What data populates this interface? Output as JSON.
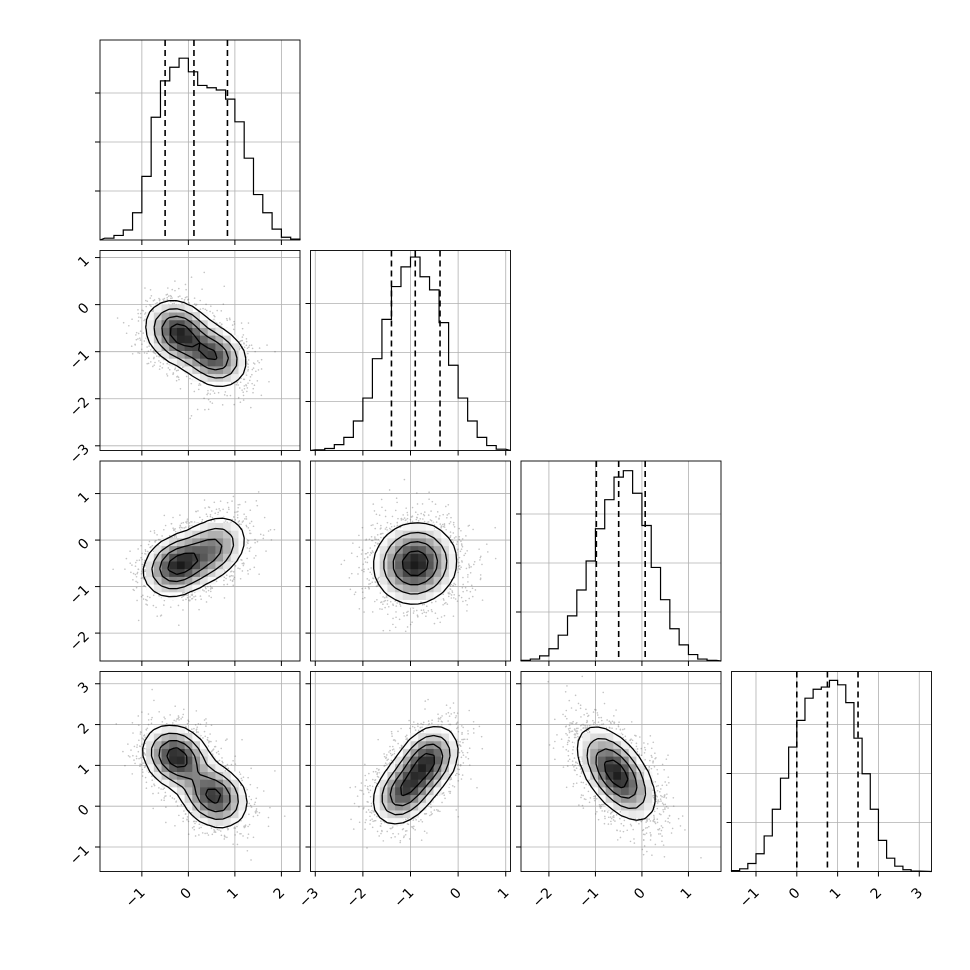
{
  "colors": {
    "background": "#ffffff",
    "ink": "#000000",
    "grid": "#b0b0b0",
    "scatter": "#555555"
  },
  "chart_data": {
    "type": "corner",
    "title": "",
    "parameters": [
      {
        "name": "",
        "xlim": [
          -1.9,
          2.4
        ],
        "hist_ylim": [
          0,
          0.44
        ],
        "ticks": [
          -1,
          0,
          1,
          2
        ],
        "tick_labels": [
          "−1",
          "0",
          "1",
          "2"
        ],
        "quantiles": [
          -0.5,
          0.12,
          0.84
        ]
      },
      {
        "name": "",
        "xlim": [
          -3.1,
          1.1
        ],
        "hist_ylim": [
          0,
          0.61
        ],
        "ticks": [
          -3,
          -2,
          -1,
          0,
          1
        ],
        "tick_labels": [
          "−3",
          "−2",
          "−1",
          "0",
          "1"
        ],
        "quantiles": [
          -1.4,
          -0.9,
          -0.38
        ]
      },
      {
        "name": "",
        "xlim": [
          -2.6,
          1.7
        ],
        "hist_ylim": [
          0,
          0.62
        ],
        "ticks": [
          -2,
          -1,
          0,
          1
        ],
        "tick_labels": [
          "−2",
          "−1",
          "0",
          "1"
        ],
        "quantiles": [
          -0.98,
          -0.5,
          0.07
        ]
      },
      {
        "name": "",
        "xlim": [
          -1.6,
          3.3
        ],
        "hist_ylim": [
          0,
          0.45
        ],
        "ticks": [
          -1,
          0,
          1,
          2,
          3
        ],
        "tick_labels": [
          "−1",
          "0",
          "1",
          "2",
          "3"
        ],
        "quantiles": [
          0.0,
          0.75,
          1.5
        ]
      }
    ],
    "histograms": [
      {
        "bin_edges": [
          -1.8,
          -1.6,
          -1.4,
          -1.2,
          -1.0,
          -0.8,
          -0.6,
          -0.4,
          -0.2,
          0.0,
          0.2,
          0.4,
          0.6,
          0.8,
          1.0,
          1.2,
          1.4,
          1.6,
          1.8,
          2.0,
          2.2,
          2.4
        ],
        "counts": [
          0.004,
          0.01,
          0.022,
          0.06,
          0.14,
          0.27,
          0.35,
          0.38,
          0.4,
          0.37,
          0.34,
          0.335,
          0.33,
          0.31,
          0.26,
          0.18,
          0.1,
          0.06,
          0.024,
          0.006,
          0.002
        ]
      },
      {
        "bin_edges": [
          -3.0,
          -2.8,
          -2.6,
          -2.4,
          -2.2,
          -2.0,
          -1.8,
          -1.6,
          -1.4,
          -1.2,
          -1.0,
          -0.8,
          -0.6,
          -0.4,
          -0.2,
          0.0,
          0.2,
          0.4,
          0.6,
          0.8,
          1.0
        ],
        "counts": [
          0.002,
          0.006,
          0.018,
          0.04,
          0.09,
          0.16,
          0.28,
          0.4,
          0.5,
          0.56,
          0.59,
          0.53,
          0.49,
          0.39,
          0.26,
          0.16,
          0.09,
          0.04,
          0.015,
          0.004
        ]
      },
      {
        "bin_edges": [
          -2.6,
          -2.4,
          -2.2,
          -2.0,
          -1.8,
          -1.6,
          -1.4,
          -1.2,
          -1.0,
          -0.8,
          -0.6,
          -0.4,
          -0.2,
          0.0,
          0.2,
          0.4,
          0.6,
          0.8,
          1.0,
          1.2,
          1.4,
          1.6
        ],
        "counts": [
          0.002,
          0.006,
          0.016,
          0.038,
          0.08,
          0.14,
          0.22,
          0.31,
          0.41,
          0.5,
          0.57,
          0.59,
          0.52,
          0.42,
          0.29,
          0.19,
          0.1,
          0.05,
          0.02,
          0.006,
          0.002
        ]
      },
      {
        "bin_edges": [
          -1.6,
          -1.4,
          -1.2,
          -1.0,
          -0.8,
          -0.6,
          -0.4,
          -0.2,
          0.0,
          0.2,
          0.4,
          0.6,
          0.8,
          1.0,
          1.2,
          1.4,
          1.6,
          1.8,
          2.0,
          2.2,
          2.4,
          2.6,
          2.8,
          3.0
        ],
        "counts": [
          0.002,
          0.006,
          0.018,
          0.04,
          0.08,
          0.14,
          0.21,
          0.28,
          0.34,
          0.39,
          0.41,
          0.415,
          0.43,
          0.42,
          0.38,
          0.3,
          0.22,
          0.14,
          0.07,
          0.03,
          0.012,
          0.004,
          0.001
        ]
      }
    ],
    "pairs": [
      {
        "row": 1,
        "col": 0,
        "ylim": [
          -3.1,
          1.15
        ],
        "yticks": [
          -3,
          -2,
          -1,
          0,
          1
        ],
        "ytick_labels": [
          "−3",
          "−2",
          "−1",
          "0",
          "1"
        ],
        "modes": [
          {
            "mx": -0.2,
            "my": -0.6,
            "sx": 0.35,
            "sy": 0.33,
            "rho": -0.2,
            "w": 0.55
          },
          {
            "mx": 0.55,
            "my": -1.1,
            "sx": 0.35,
            "sy": 0.32,
            "rho": -0.2,
            "w": 0.45
          }
        ]
      },
      {
        "row": 2,
        "col": 0,
        "ylim": [
          -2.6,
          1.7
        ],
        "yticks": [
          -2,
          -1,
          0,
          1
        ],
        "ytick_labels": [
          "−2",
          "−1",
          "0",
          "1"
        ],
        "modes": [
          {
            "mx": -0.25,
            "my": -0.55,
            "sx": 0.35,
            "sy": 0.32,
            "rho": 0.2,
            "w": 0.55
          },
          {
            "mx": 0.5,
            "my": -0.2,
            "sx": 0.38,
            "sy": 0.36,
            "rho": 0.3,
            "w": 0.45
          }
        ]
      },
      {
        "row": 3,
        "col": 0,
        "ylim": [
          -1.6,
          3.3
        ],
        "yticks": [
          -1,
          0,
          1,
          2,
          3
        ],
        "ytick_labels": [
          "−1",
          "0",
          "1",
          "2",
          "3"
        ],
        "modes": [
          {
            "mx": -0.25,
            "my": 1.2,
            "sx": 0.35,
            "sy": 0.38,
            "rho": -0.2,
            "w": 0.52
          },
          {
            "mx": 0.55,
            "my": 0.25,
            "sx": 0.35,
            "sy": 0.38,
            "rho": -0.2,
            "w": 0.48
          }
        ]
      },
      {
        "row": 2,
        "col": 1,
        "ylim": [
          -2.6,
          1.7
        ],
        "yticks": [
          -2,
          -1,
          0,
          1
        ],
        "ytick_labels": [
          "−2",
          "−1",
          "0",
          "1"
        ],
        "modes": [
          {
            "mx": -0.9,
            "my": -0.5,
            "sx": 0.42,
            "sy": 0.42,
            "rho": 0.05,
            "w": 1.0
          }
        ]
      },
      {
        "row": 3,
        "col": 1,
        "ylim": [
          -1.6,
          3.3
        ],
        "yticks": [
          -1,
          0,
          1,
          2,
          3
        ],
        "ytick_labels": [
          "−1",
          "0",
          "1",
          "2",
          "3"
        ],
        "modes": [
          {
            "mx": -1.15,
            "my": 0.35,
            "sx": 0.32,
            "sy": 0.4,
            "rho": 0.3,
            "w": 0.45
          },
          {
            "mx": -0.65,
            "my": 1.1,
            "sx": 0.32,
            "sy": 0.42,
            "rho": 0.3,
            "w": 0.55
          }
        ]
      },
      {
        "row": 3,
        "col": 2,
        "ylim": [
          -1.6,
          3.3
        ],
        "yticks": [
          -1,
          0,
          1,
          2,
          3
        ],
        "ytick_labels": [
          "−1",
          "0",
          "1",
          "2",
          "3"
        ],
        "modes": [
          {
            "mx": -0.55,
            "my": 0.8,
            "sx": 0.4,
            "sy": 0.55,
            "rho": -0.55,
            "w": 1.0
          }
        ]
      }
    ],
    "grid": true,
    "contour_levels_fraction": [
      0.12,
      0.3,
      0.55,
      0.82
    ]
  }
}
